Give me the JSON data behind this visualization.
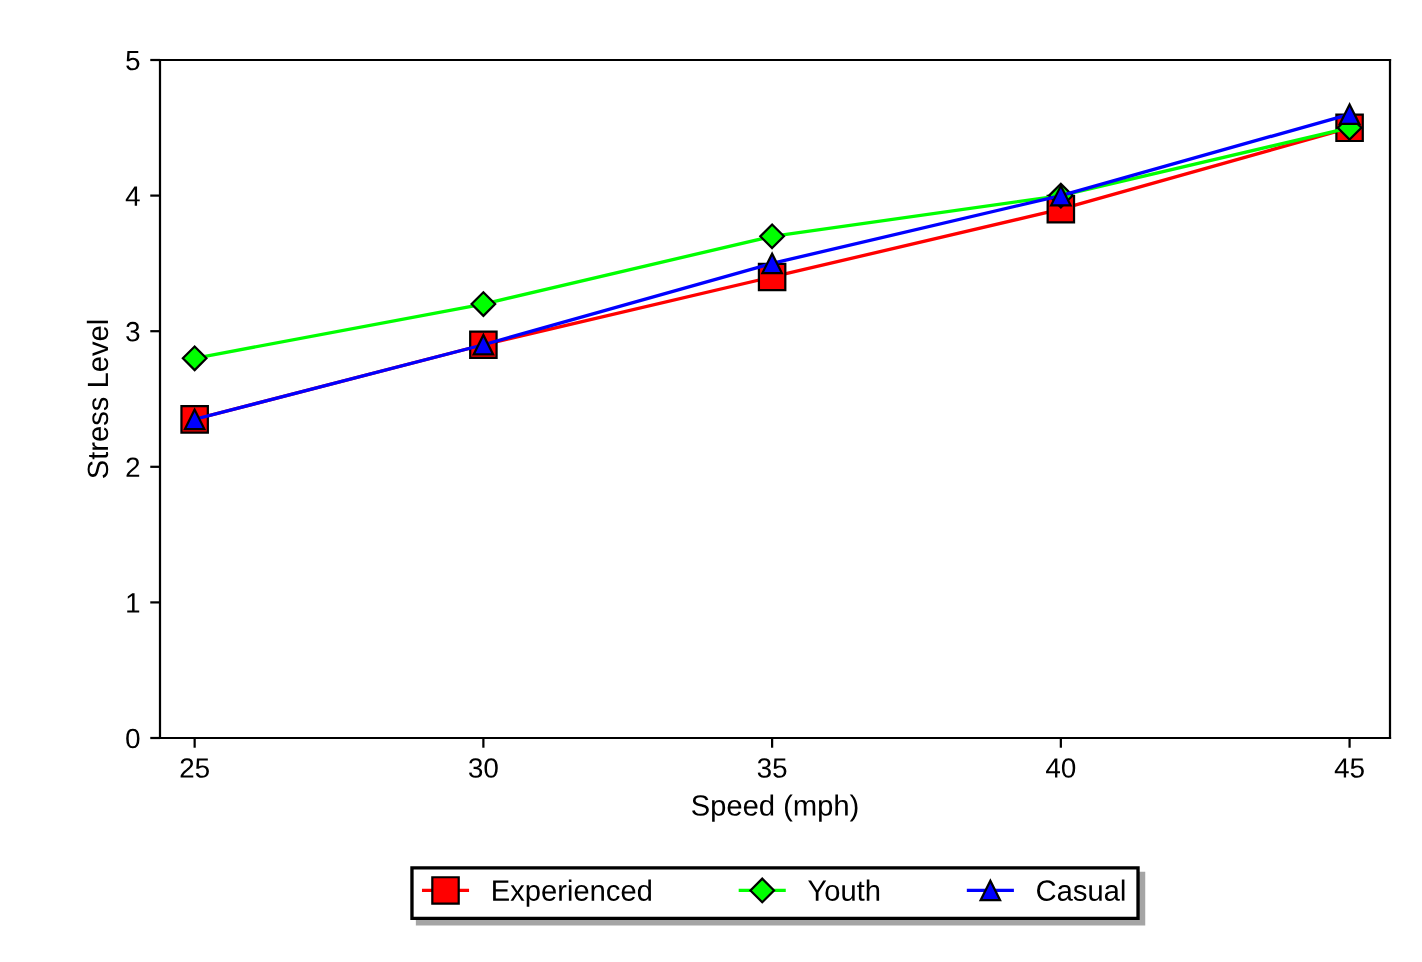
{
  "chart_data": {
    "type": "line",
    "xlabel": "Speed (mph)",
    "ylabel": "Stress Level",
    "x": [
      25,
      30,
      35,
      40,
      45
    ],
    "series": [
      {
        "name": "Experienced",
        "color": "#ff0000",
        "marker": "square",
        "values": [
          2.35,
          2.9,
          3.4,
          3.9,
          4.5
        ]
      },
      {
        "name": "Youth",
        "color": "#00ff00",
        "marker": "diamond",
        "values": [
          2.8,
          3.2,
          3.7,
          4.0,
          4.5
        ]
      },
      {
        "name": "Casual",
        "color": "#0000ff",
        "marker": "triangle",
        "values": [
          2.35,
          2.9,
          3.5,
          4.0,
          4.6
        ]
      }
    ],
    "xlim": [
      24.4,
      45.7
    ],
    "xticks": [
      25,
      30,
      35,
      40,
      45
    ],
    "ylim": [
      0,
      5
    ],
    "yticks": [
      0,
      1,
      2,
      3,
      4,
      5
    ],
    "grid": false,
    "legend": "bottom",
    "line_style": "solid"
  }
}
